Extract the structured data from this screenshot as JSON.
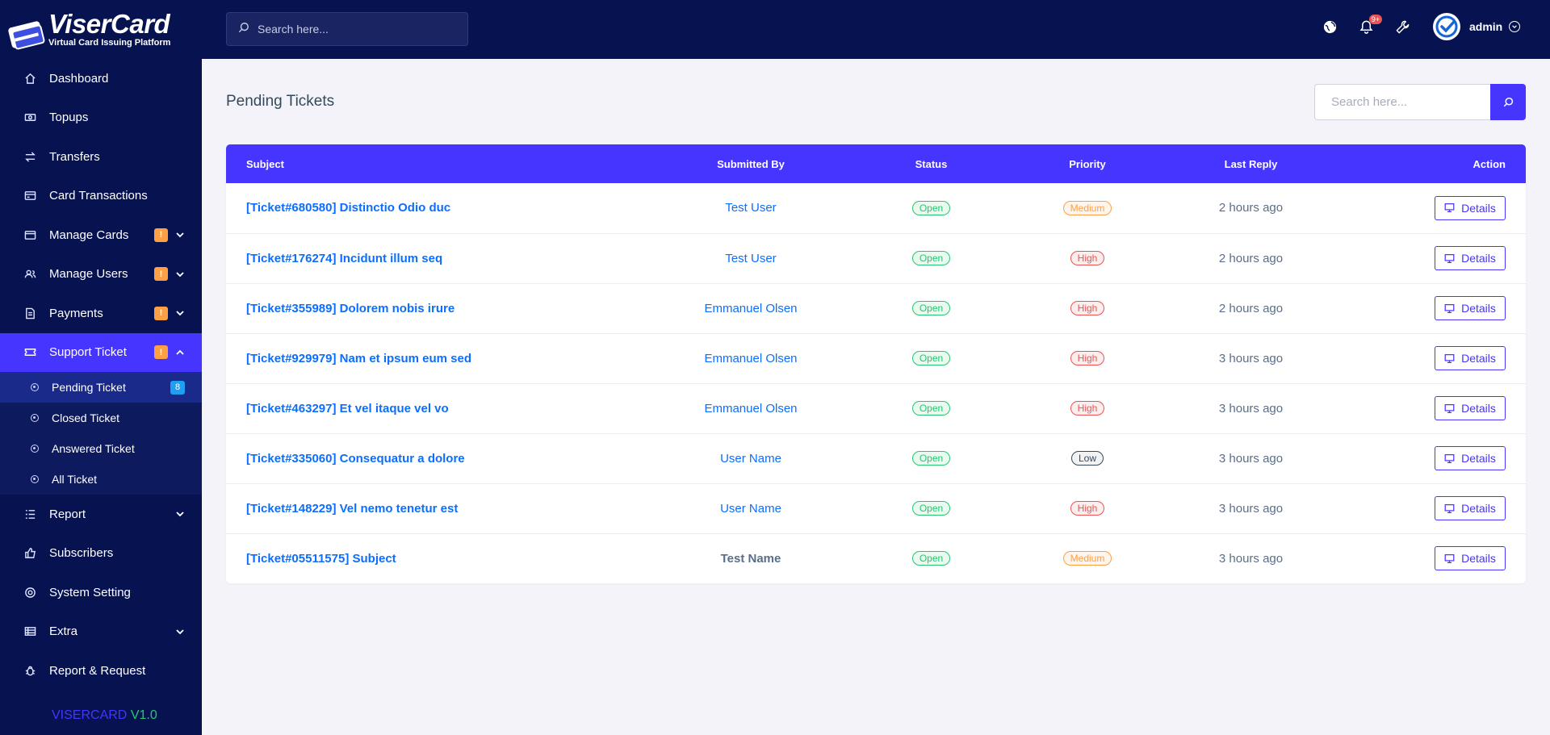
{
  "brand": {
    "name_a": "Viser",
    "name_b": "Card",
    "tagline": "Virtual Card Issuing Platform"
  },
  "colors": {
    "sidebar_bg": "#071251",
    "accent": "#4634ff",
    "success": "#28c76f",
    "warning": "#ff9f43",
    "danger": "#ea5455",
    "info": "#1e9ff2"
  },
  "sidebar": {
    "items": [
      {
        "label": "Dashboard",
        "icon": "home-icon"
      },
      {
        "label": "Topups",
        "icon": "money-icon"
      },
      {
        "label": "Transfers",
        "icon": "exchange-icon"
      },
      {
        "label": "Card Transactions",
        "icon": "credit-card-icon"
      },
      {
        "label": "Manage Cards",
        "icon": "card-icon",
        "badge": "!"
      },
      {
        "label": "Manage Users",
        "icon": "users-icon",
        "badge": "!"
      },
      {
        "label": "Payments",
        "icon": "invoice-icon",
        "badge": "!"
      },
      {
        "label": "Support Ticket",
        "icon": "ticket-icon",
        "badge": "!"
      },
      {
        "label": "Report",
        "icon": "list-icon"
      },
      {
        "label": "Subscribers",
        "icon": "thumbs-up-icon"
      },
      {
        "label": "System Setting",
        "icon": "life-ring-icon"
      },
      {
        "label": "Extra",
        "icon": "server-icon"
      },
      {
        "label": "Report & Request",
        "icon": "bug-icon"
      }
    ],
    "sub_items": [
      {
        "label": "Pending Ticket",
        "count": "8"
      },
      {
        "label": "Closed Ticket"
      },
      {
        "label": "Answered Ticket"
      },
      {
        "label": "All Ticket"
      }
    ],
    "version_name": "VISERCARD",
    "version_num": "V1.0"
  },
  "topbar": {
    "search_placeholder": "Search here...",
    "notification_count": "9+",
    "admin_name": "admin"
  },
  "page": {
    "title": "Pending Tickets",
    "search_placeholder": "Search here..."
  },
  "table": {
    "headers": {
      "subject": "Subject",
      "submitted_by": "Submitted By",
      "status": "Status",
      "priority": "Priority",
      "last_reply": "Last Reply",
      "action": "Action"
    },
    "details_label": "Details",
    "rows": [
      {
        "subject": "[Ticket#680580] Distinctio Odio duc",
        "submitted_by": "Test User",
        "status": "Open",
        "priority": "Medium",
        "last_reply": "2 hours ago"
      },
      {
        "subject": "[Ticket#176274] Incidunt illum seq",
        "submitted_by": "Test User",
        "status": "Open",
        "priority": "High",
        "last_reply": "2 hours ago"
      },
      {
        "subject": "[Ticket#355989] Dolorem nobis irure",
        "submitted_by": "Emmanuel Olsen",
        "status": "Open",
        "priority": "High",
        "last_reply": "2 hours ago"
      },
      {
        "subject": "[Ticket#929979] Nam et ipsum eum sed",
        "submitted_by": "Emmanuel Olsen",
        "status": "Open",
        "priority": "High",
        "last_reply": "3 hours ago"
      },
      {
        "subject": "[Ticket#463297] Et vel itaque vel vo",
        "submitted_by": "Emmanuel Olsen",
        "status": "Open",
        "priority": "High",
        "last_reply": "3 hours ago"
      },
      {
        "subject": "[Ticket#335060] Consequatur a dolore",
        "submitted_by": "User Name",
        "status": "Open",
        "priority": "Low",
        "last_reply": "3 hours ago"
      },
      {
        "subject": "[Ticket#148229] Vel nemo tenetur est",
        "submitted_by": "User Name",
        "status": "Open",
        "priority": "High",
        "last_reply": "3 hours ago"
      },
      {
        "subject": "[Ticket#05511575] Subject",
        "submitted_by": "Test Name",
        "status": "Open",
        "priority": "Medium",
        "last_reply": "3 hours ago"
      }
    ]
  }
}
